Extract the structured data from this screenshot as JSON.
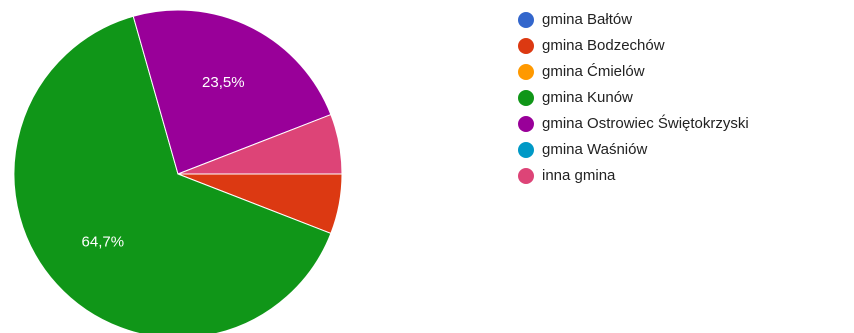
{
  "chart_data": {
    "type": "pie",
    "categories": [
      "gmina Bałtów",
      "gmina Bodzechów",
      "gmina Ćmielów",
      "gmina Kunów",
      "gmina Ostrowiec Świętokrzyski",
      "gmina Waśniów",
      "inna gmina"
    ],
    "values": [
      0,
      5.9,
      0,
      64.7,
      23.5,
      0,
      5.9
    ],
    "colors": [
      "#3366cc",
      "#dc3912",
      "#ff9900",
      "#109618",
      "#990099",
      "#0099c6",
      "#dd4477"
    ],
    "data_labels": {
      "gmina Kunów": "64,7%",
      "gmina Ostrowiec Świętokrzyski": "23,5%"
    },
    "legend_position": "right",
    "title": ""
  }
}
